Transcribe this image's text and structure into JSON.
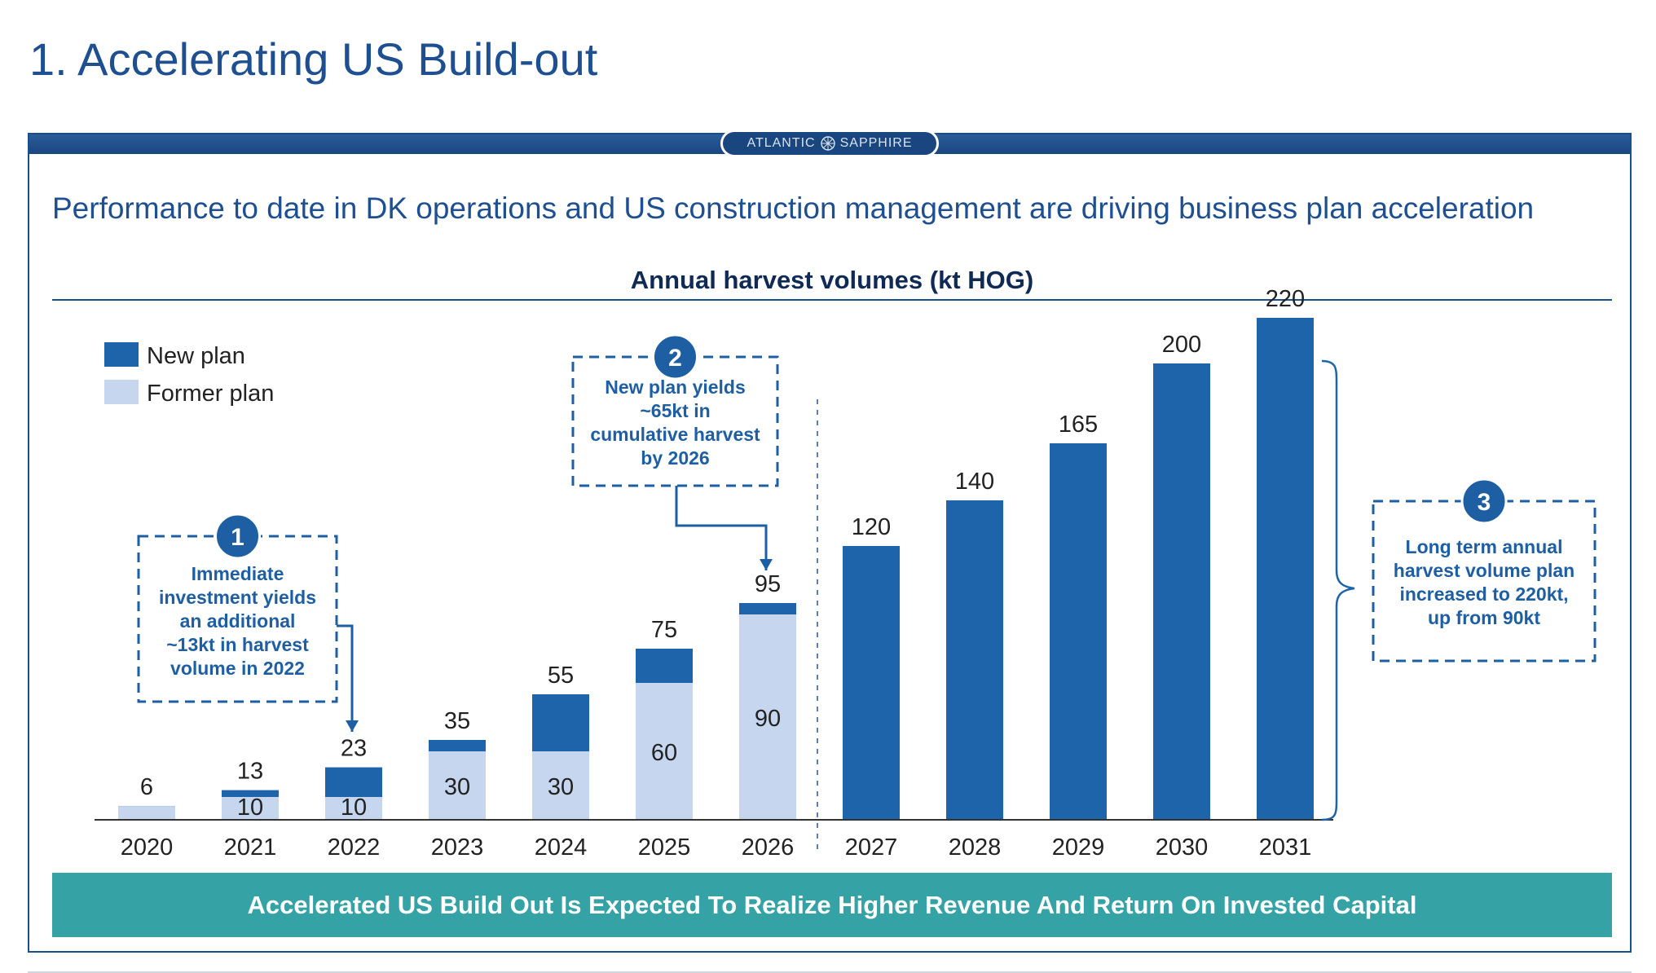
{
  "page": {
    "title": "1. Accelerating US Build-out",
    "brand_left": "ATLANTIC",
    "brand_right": "SAPPHIRE",
    "subtitle": "Performance to date in DK operations and US construction management are driving business plan acceleration",
    "banner": "Accelerated US Build Out Is Expected To Realize Higher Revenue And Return On Invested Capital"
  },
  "colors": {
    "title_blue": "#1d4f91",
    "new_plan": "#1e64aa",
    "former_plan": "#c5d6ee",
    "callout_blue": "#1e5fa3",
    "banner_teal": "#35a3a5",
    "panel_border": "#1b4e8d"
  },
  "chart_data": {
    "type": "bar",
    "title": "Annual harvest volumes (kt HOG)",
    "categories": [
      "2020",
      "2021",
      "2022",
      "2023",
      "2024",
      "2025",
      "2026",
      "2027",
      "2028",
      "2029",
      "2030",
      "2031"
    ],
    "series": [
      {
        "name": "New plan",
        "values": [
          6,
          13,
          23,
          35,
          55,
          75,
          95,
          120,
          140,
          165,
          200,
          220
        ]
      },
      {
        "name": "Former plan",
        "values": [
          6,
          10,
          10,
          30,
          30,
          60,
          90,
          null,
          null,
          null,
          null,
          null
        ]
      }
    ],
    "ylim": [
      0,
      220
    ],
    "grid": false,
    "legend_position": "top-left",
    "annotations": [
      {
        "number": "1",
        "text": [
          "Immediate",
          "investment yields",
          "an additional",
          "~13kt in harvest",
          "volume in 2022"
        ]
      },
      {
        "number": "2",
        "text": [
          "New plan yields",
          "~65kt in",
          "cumulative harvest",
          "by 2026"
        ]
      },
      {
        "number": "3",
        "text": [
          "Long term annual",
          "harvest volume plan",
          "increased to 220kt,",
          "up from 90kt"
        ]
      }
    ]
  }
}
